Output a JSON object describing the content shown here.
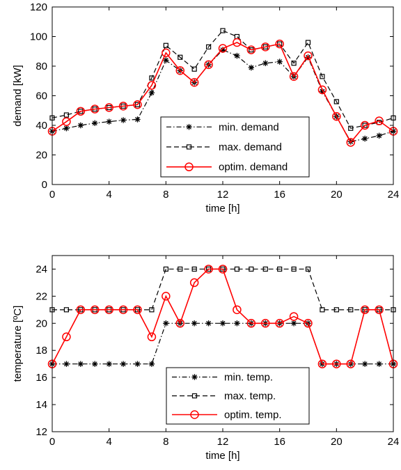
{
  "chart_data": [
    {
      "type": "line",
      "xlabel": "time [h]",
      "ylabel": "demand [kW]",
      "xlim": [
        0,
        24
      ],
      "ylim": [
        0,
        120
      ],
      "xticks": [
        0,
        4,
        8,
        12,
        16,
        20,
        24
      ],
      "yticks": [
        0,
        20,
        40,
        60,
        80,
        100,
        120
      ],
      "grid": false,
      "legend_position": "bottom-center",
      "x": [
        0,
        1,
        2,
        3,
        4,
        5,
        6,
        7,
        8,
        9,
        10,
        11,
        12,
        13,
        14,
        15,
        16,
        17,
        18,
        19,
        20,
        21,
        22,
        23,
        24
      ],
      "series": [
        {
          "name": "min. demand",
          "style": "dashdot",
          "marker": "star",
          "color": "#000000",
          "values": [
            36,
            38,
            40,
            41.5,
            42.5,
            43.5,
            44,
            62,
            84,
            77,
            69,
            81,
            91,
            87,
            79,
            82,
            83,
            73,
            86,
            63,
            46,
            29,
            31,
            33,
            36
          ]
        },
        {
          "name": "max. demand",
          "style": "dashed",
          "marker": "square",
          "color": "#000000",
          "values": [
            45,
            47,
            49.5,
            51,
            52,
            53,
            54,
            72,
            94,
            86,
            78,
            93,
            104,
            100,
            91,
            93,
            95,
            82,
            96,
            73,
            56,
            38,
            40,
            42,
            45
          ]
        },
        {
          "name": "optim. demand",
          "style": "solid",
          "marker": "circle",
          "color": "#ff0000",
          "values": [
            36,
            42.5,
            49.5,
            51,
            52,
            53,
            54,
            67,
            89,
            77,
            69,
            81,
            92,
            96,
            91,
            93,
            95,
            73,
            87,
            64,
            46,
            28.5,
            40,
            43,
            36
          ]
        }
      ]
    },
    {
      "type": "line",
      "xlabel": "time [h]",
      "ylabel": "temperature [ºC]",
      "xlim": [
        0,
        24
      ],
      "ylim": [
        12,
        25
      ],
      "xticks": [
        0,
        4,
        8,
        12,
        16,
        20,
        24
      ],
      "yticks": [
        12,
        14,
        16,
        18,
        20,
        22,
        24
      ],
      "grid": false,
      "legend_position": "bottom-center",
      "x": [
        0,
        1,
        2,
        3,
        4,
        5,
        6,
        7,
        8,
        9,
        10,
        11,
        12,
        13,
        14,
        15,
        16,
        17,
        18,
        19,
        20,
        21,
        22,
        23,
        24
      ],
      "series": [
        {
          "name": "min. temp.",
          "style": "dashdot",
          "marker": "star",
          "color": "#000000",
          "values": [
            17,
            17,
            17,
            17,
            17,
            17,
            17,
            17,
            20,
            20,
            20,
            20,
            20,
            20,
            20,
            20,
            20,
            20,
            20,
            17,
            17,
            17,
            17,
            17,
            17
          ]
        },
        {
          "name": "max. temp.",
          "style": "dashed",
          "marker": "square",
          "color": "#000000",
          "values": [
            21,
            21,
            21,
            21,
            21,
            21,
            21,
            21,
            24,
            24,
            24,
            24,
            24,
            24,
            24,
            24,
            24,
            24,
            24,
            21,
            21,
            21,
            21,
            21,
            21
          ]
        },
        {
          "name": "optim. temp.",
          "style": "solid",
          "marker": "circle",
          "color": "#ff0000",
          "values": [
            17,
            19,
            21,
            21,
            21,
            21,
            21,
            19,
            22,
            20,
            23,
            24,
            24,
            21,
            20,
            20,
            20,
            20.5,
            20,
            17,
            17,
            17,
            21,
            21,
            17
          ]
        }
      ]
    }
  ]
}
